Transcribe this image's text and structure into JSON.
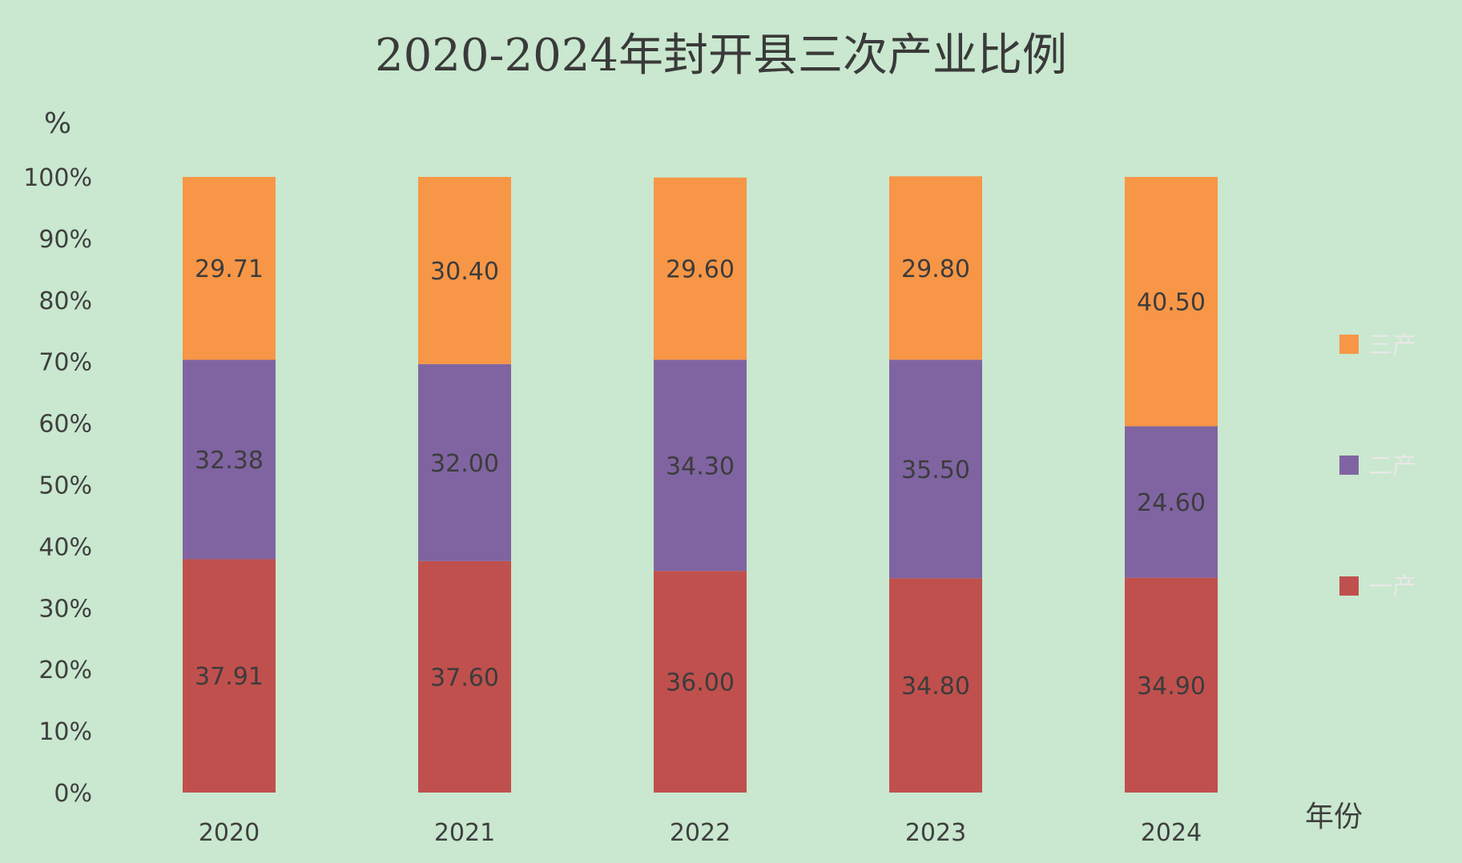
{
  "chart_data": {
    "type": "bar",
    "stacked": true,
    "title": "2020-2024年封开县三次产业比例",
    "ylabel": "%",
    "xlabel": "年份",
    "ylim": [
      0,
      100
    ],
    "yticks": [
      "0%",
      "10%",
      "20%",
      "30%",
      "40%",
      "50%",
      "60%",
      "70%",
      "80%",
      "90%",
      "100%"
    ],
    "categories": [
      "2020",
      "2021",
      "2022",
      "2023",
      "2024"
    ],
    "series": [
      {
        "name": "一产",
        "color": "#c0504d",
        "values": [
          37.91,
          37.6,
          36.0,
          34.8,
          34.9
        ],
        "labels": [
          "37.91",
          "37.60",
          "36.00",
          "34.80",
          "34.90"
        ]
      },
      {
        "name": "二产",
        "color": "#8064a2",
        "values": [
          32.38,
          32.0,
          34.3,
          35.5,
          24.6
        ],
        "labels": [
          "32.38",
          "32.00",
          "34.30",
          "35.50",
          "24.60"
        ]
      },
      {
        "name": "三产",
        "color": "#f79646",
        "values": [
          29.71,
          30.4,
          29.6,
          29.8,
          40.5
        ],
        "labels": [
          "29.71",
          "30.40",
          "29.60",
          "29.80",
          "40.50"
        ]
      }
    ],
    "legend_order": [
      "三产",
      "二产",
      "一产"
    ],
    "legend_position": "right",
    "grid": false
  }
}
